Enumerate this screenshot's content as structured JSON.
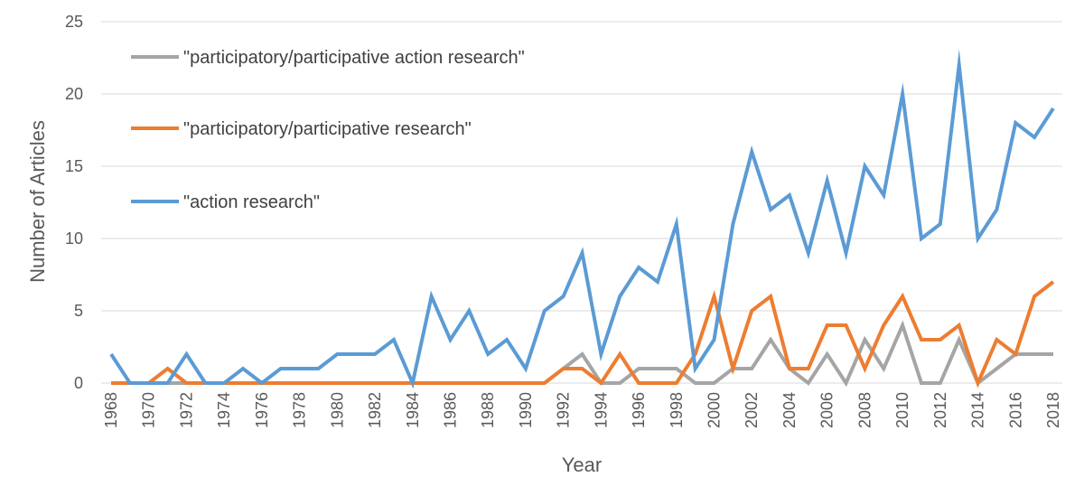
{
  "chart_data": {
    "type": "line",
    "title": "",
    "xlabel": "Year",
    "ylabel": "Number of Articles",
    "ylim": [
      0,
      25
    ],
    "yticks": [
      0,
      5,
      10,
      15,
      20,
      25
    ],
    "xlim": [
      1968,
      2018
    ],
    "xticks": [
      "1968",
      "1970",
      "1972",
      "1974",
      "1976",
      "1978",
      "1980",
      "1982",
      "1984",
      "1986",
      "1988",
      "1990",
      "1992",
      "1994",
      "1996",
      "1998",
      "2000",
      "2002",
      "2004",
      "2006",
      "2008",
      "2010",
      "2012",
      "2014",
      "2016",
      "2018"
    ],
    "grid": true,
    "legend_position": "top-left",
    "x": [
      1968,
      1969,
      1970,
      1971,
      1972,
      1973,
      1974,
      1975,
      1976,
      1977,
      1978,
      1979,
      1980,
      1981,
      1982,
      1983,
      1984,
      1985,
      1986,
      1987,
      1988,
      1989,
      1990,
      1991,
      1992,
      1993,
      1994,
      1995,
      1996,
      1997,
      1998,
      1999,
      2000,
      2001,
      2002,
      2003,
      2004,
      2005,
      2006,
      2007,
      2008,
      2009,
      2010,
      2011,
      2012,
      2013,
      2014,
      2015,
      2016,
      2017,
      2018
    ],
    "series": [
      {
        "name": "\"participatory/participative action research\"",
        "color": "#A5A5A5",
        "values": [
          0,
          0,
          0,
          0,
          0,
          0,
          0,
          0,
          0,
          0,
          0,
          0,
          0,
          0,
          0,
          0,
          0,
          0,
          0,
          0,
          0,
          0,
          0,
          0,
          1,
          2,
          0,
          0,
          1,
          1,
          1,
          0,
          0,
          1,
          1,
          3,
          1,
          0,
          2,
          0,
          3,
          1,
          4,
          0,
          0,
          3,
          0,
          1,
          2,
          2,
          2
        ]
      },
      {
        "name": "\"participatory/participative research\"",
        "color": "#ED7D31",
        "values": [
          0,
          0,
          0,
          1,
          0,
          0,
          0,
          0,
          0,
          0,
          0,
          0,
          0,
          0,
          0,
          0,
          0,
          0,
          0,
          0,
          0,
          0,
          0,
          0,
          1,
          1,
          0,
          2,
          0,
          0,
          0,
          2,
          6,
          1,
          5,
          6,
          1,
          1,
          4,
          4,
          1,
          4,
          6,
          3,
          3,
          4,
          0,
          3,
          2,
          6,
          7
        ]
      },
      {
        "name": "\"action research\"",
        "color": "#5B9BD5",
        "values": [
          2,
          0,
          0,
          0,
          2,
          0,
          0,
          1,
          0,
          1,
          1,
          1,
          2,
          2,
          2,
          3,
          0,
          6,
          3,
          5,
          2,
          3,
          1,
          5,
          6,
          9,
          2,
          6,
          8,
          7,
          11,
          1,
          3,
          11,
          16,
          12,
          13,
          9,
          14,
          9,
          15,
          13,
          20,
          10,
          11,
          22,
          10,
          12,
          18,
          17,
          19
        ]
      }
    ]
  }
}
